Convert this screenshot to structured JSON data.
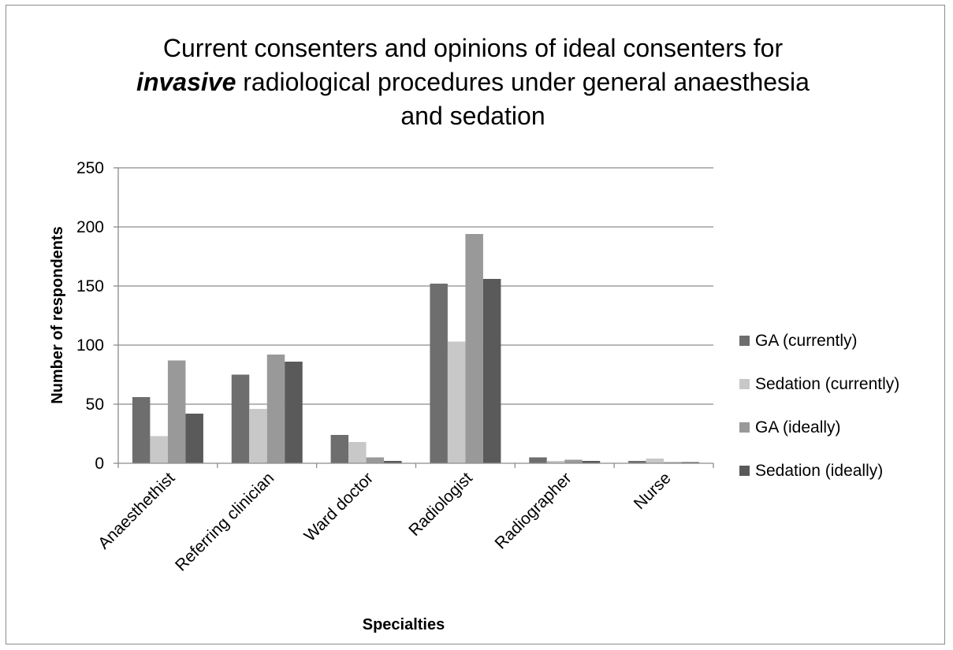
{
  "chart_data": {
    "type": "bar",
    "title": {
      "line1": "Current consenters and opinions of ideal consenters for",
      "line2_emphasis": "invasive",
      "line2_rest": " radiological procedures under general anaesthesia",
      "line3": "and sedation"
    },
    "xlabel": "Specialties",
    "ylabel": "Number of respondents",
    "ylim": [
      0,
      250
    ],
    "yticks": [
      0,
      50,
      100,
      150,
      200,
      250
    ],
    "grid": true,
    "legend_position": "right",
    "categories": [
      "Anaesthethist",
      "Referring clinician",
      "Ward doctor",
      "Radiologist",
      "Radiographer",
      "Nurse"
    ],
    "series": [
      {
        "name": "GA (currently)",
        "color": "#6e6e6e",
        "values": [
          56,
          75,
          24,
          152,
          5,
          2
        ]
      },
      {
        "name": "Sedation (currently)",
        "color": "#c8c8c8",
        "values": [
          23,
          46,
          18,
          103,
          2,
          4
        ]
      },
      {
        "name": "GA (ideally)",
        "color": "#999999",
        "values": [
          87,
          92,
          5,
          194,
          3,
          1
        ]
      },
      {
        "name": "Sedation (ideally)",
        "color": "#5a5a5a",
        "values": [
          42,
          86,
          2,
          156,
          2,
          1
        ]
      }
    ]
  }
}
